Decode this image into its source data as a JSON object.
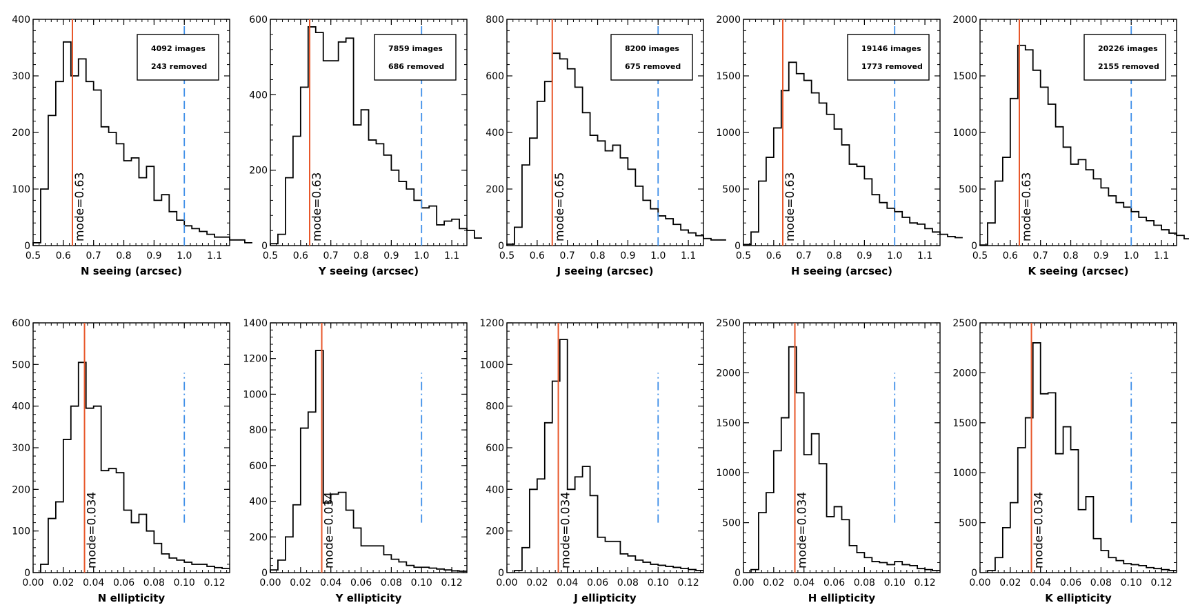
{
  "colors": {
    "axis": "#000000",
    "histogram": "#000000",
    "mode_line": "#e8572a",
    "threshold_line": "#3f8fe8"
  },
  "chart_data": [
    {
      "type": "step-histogram",
      "xlabel": "N seeing (arcsec)",
      "xlim": [
        0.5,
        1.15
      ],
      "xticks": [
        "0.5",
        "0.6",
        "0.7",
        "0.8",
        "0.9",
        "1.0",
        "1.1"
      ],
      "ylim": [
        0,
        400
      ],
      "yticks": [
        "0",
        "100",
        "200",
        "300",
        "400"
      ],
      "bin_width": 0.025,
      "bin_start": 0.5,
      "counts": [
        5,
        100,
        230,
        290,
        360,
        300,
        330,
        290,
        275,
        210,
        200,
        180,
        150,
        155,
        120,
        140,
        80,
        90,
        60,
        45,
        35,
        30,
        25,
        20,
        15,
        15,
        10,
        10,
        5
      ],
      "images_label": "4092 images",
      "removed_label": "243 removed",
      "mode_value": 0.63,
      "mode_label": "mode=0.63",
      "threshold": 1.0,
      "threshold_range": [
        0,
        390
      ],
      "threshold_style": "dashed"
    },
    {
      "type": "step-histogram",
      "xlabel": "Y seeing (arcsec)",
      "xlim": [
        0.5,
        1.15
      ],
      "xticks": [
        "0.5",
        "0.6",
        "0.7",
        "0.8",
        "0.9",
        "1.0",
        "1.1"
      ],
      "ylim": [
        0,
        600
      ],
      "yticks": [
        "0",
        "200",
        "400",
        "600"
      ],
      "bin_width": 0.025,
      "bin_start": 0.5,
      "counts": [
        5,
        30,
        180,
        290,
        420,
        580,
        565,
        490,
        490,
        540,
        550,
        320,
        360,
        280,
        270,
        240,
        200,
        170,
        150,
        120,
        100,
        105,
        55,
        65,
        70,
        45,
        40,
        20
      ],
      "images_label": "7859 images",
      "removed_label": "686 removed",
      "mode_value": 0.63,
      "mode_label": "mode=0.63",
      "threshold": 1.0,
      "threshold_range": [
        0,
        590
      ],
      "threshold_style": "dashed"
    },
    {
      "type": "step-histogram",
      "xlabel": "J seeing (arcsec)",
      "xlim": [
        0.5,
        1.15
      ],
      "xticks": [
        "0.5",
        "0.6",
        "0.7",
        "0.8",
        "0.9",
        "1.0",
        "1.1"
      ],
      "ylim": [
        0,
        800
      ],
      "yticks": [
        "0",
        "200",
        "400",
        "600",
        "800"
      ],
      "bin_width": 0.025,
      "bin_start": 0.5,
      "counts": [
        5,
        65,
        285,
        380,
        510,
        580,
        680,
        660,
        625,
        560,
        470,
        390,
        370,
        335,
        355,
        310,
        270,
        210,
        160,
        130,
        105,
        95,
        75,
        55,
        45,
        35,
        25,
        20,
        20
      ],
      "images_label": "8200 images",
      "removed_label": "675 removed",
      "mode_value": 0.65,
      "mode_label": "mode=0.65",
      "threshold": 1.0,
      "threshold_range": [
        0,
        790
      ],
      "threshold_style": "dashed"
    },
    {
      "type": "step-histogram",
      "xlabel": "H seeing (arcsec)",
      "xlim": [
        0.5,
        1.15
      ],
      "xticks": [
        "0.5",
        "0.6",
        "0.7",
        "0.8",
        "0.9",
        "1.0",
        "1.1"
      ],
      "ylim": [
        0,
        2000
      ],
      "yticks": [
        "0",
        "500",
        "1000",
        "1500",
        "2000"
      ],
      "bin_width": 0.025,
      "bin_start": 0.5,
      "counts": [
        10,
        120,
        570,
        780,
        1040,
        1370,
        1620,
        1520,
        1460,
        1350,
        1260,
        1160,
        1030,
        890,
        720,
        700,
        590,
        450,
        380,
        330,
        300,
        250,
        200,
        190,
        150,
        120,
        100,
        80,
        70
      ],
      "images_label": "19146 images",
      "removed_label": "1773 removed",
      "mode_value": 0.63,
      "mode_label": "mode=0.63",
      "threshold": 1.0,
      "threshold_range": [
        0,
        1980
      ],
      "threshold_style": "dashed"
    },
    {
      "type": "step-histogram",
      "xlabel": "K seeing (arcsec)",
      "xlim": [
        0.5,
        1.15
      ],
      "xticks": [
        "0.5",
        "0.6",
        "0.7",
        "0.8",
        "0.9",
        "1.0",
        "1.1"
      ],
      "ylim": [
        0,
        2000
      ],
      "yticks": [
        "0",
        "500",
        "1000",
        "1500",
        "2000"
      ],
      "bin_width": 0.025,
      "bin_start": 0.5,
      "counts": [
        5,
        200,
        570,
        780,
        1300,
        1770,
        1730,
        1550,
        1400,
        1250,
        1050,
        870,
        720,
        760,
        670,
        590,
        510,
        440,
        380,
        340,
        300,
        250,
        220,
        180,
        140,
        110,
        90,
        60
      ],
      "images_label": "20226 images",
      "removed_label": "2155 removed",
      "mode_value": 0.63,
      "mode_label": "mode=0.63",
      "threshold": 1.0,
      "threshold_range": [
        0,
        1980
      ],
      "threshold_style": "dashed"
    },
    {
      "type": "step-histogram",
      "xlabel": "N ellipticity",
      "xlim": [
        0.0,
        0.13
      ],
      "xticks": [
        "0.00",
        "0.02",
        "0.04",
        "0.06",
        "0.08",
        "0.10",
        "0.12"
      ],
      "ylim": [
        0,
        600
      ],
      "yticks": [
        "0",
        "100",
        "200",
        "300",
        "400",
        "500",
        "600"
      ],
      "bin_width": 0.005,
      "bin_start": 0.005,
      "counts": [
        20,
        130,
        170,
        320,
        400,
        505,
        395,
        400,
        245,
        250,
        240,
        150,
        120,
        140,
        100,
        70,
        45,
        35,
        30,
        25,
        20,
        20,
        15,
        12,
        10
      ],
      "images_label": "",
      "removed_label": "",
      "mode_value": 0.034,
      "mode_label": "mode=0.034",
      "threshold": 0.1,
      "threshold_range": [
        120,
        480
      ],
      "threshold_style": "dashdot"
    },
    {
      "type": "step-histogram",
      "xlabel": "Y ellipticity",
      "xlim": [
        0.0,
        0.13
      ],
      "xticks": [
        "0.00",
        "0.02",
        "0.04",
        "0.06",
        "0.08",
        "0.10",
        "0.12"
      ],
      "ylim": [
        0,
        1400
      ],
      "yticks": [
        "0",
        "200",
        "400",
        "600",
        "800",
        "1000",
        "1200",
        "1400"
      ],
      "bin_width": 0.005,
      "bin_start": 0.0,
      "counts": [
        15,
        70,
        200,
        380,
        810,
        900,
        1245,
        390,
        440,
        450,
        350,
        250,
        150,
        150,
        150,
        100,
        75,
        60,
        40,
        30,
        30,
        25,
        20,
        15,
        10,
        8
      ],
      "images_label": "",
      "removed_label": "",
      "mode_value": 0.034,
      "mode_label": "mode=0.034",
      "threshold": 0.1,
      "threshold_range": [
        280,
        1120
      ],
      "threshold_style": "dashdot"
    },
    {
      "type": "step-histogram",
      "xlabel": "J ellipticity",
      "xlim": [
        0.0,
        0.13
      ],
      "xticks": [
        "0.00",
        "0.02",
        "0.04",
        "0.06",
        "0.08",
        "0.10",
        "0.12"
      ],
      "ylim": [
        0,
        1200
      ],
      "yticks": [
        "0",
        "200",
        "400",
        "600",
        "800",
        "1000",
        "1200"
      ],
      "bin_width": 0.005,
      "bin_start": 0.005,
      "counts": [
        10,
        120,
        400,
        450,
        720,
        920,
        1120,
        400,
        460,
        510,
        370,
        170,
        150,
        150,
        90,
        80,
        60,
        50,
        40,
        35,
        30,
        25,
        20,
        15,
        10
      ],
      "images_label": "",
      "removed_label": "",
      "mode_value": 0.034,
      "mode_label": "mode=0.034",
      "threshold": 0.1,
      "threshold_range": [
        240,
        960
      ],
      "threshold_style": "dashdot"
    },
    {
      "type": "step-histogram",
      "xlabel": "H ellipticity",
      "xlim": [
        0.0,
        0.13
      ],
      "xticks": [
        "0.00",
        "0.02",
        "0.04",
        "0.06",
        "0.08",
        "0.10",
        "0.12"
      ],
      "ylim": [
        0,
        2500
      ],
      "yticks": [
        "0",
        "500",
        "1000",
        "1500",
        "2000",
        "2500"
      ],
      "bin_width": 0.005,
      "bin_start": 0.005,
      "counts": [
        30,
        600,
        800,
        1220,
        1550,
        2260,
        1800,
        1180,
        1390,
        1090,
        560,
        660,
        530,
        270,
        200,
        150,
        110,
        100,
        80,
        110,
        80,
        70,
        40,
        30,
        20
      ],
      "images_label": "",
      "removed_label": "",
      "mode_value": 0.034,
      "mode_label": "mode=0.034",
      "threshold": 0.1,
      "threshold_range": [
        500,
        2000
      ],
      "threshold_style": "dashdot"
    },
    {
      "type": "step-histogram",
      "xlabel": "K ellipticity",
      "xlim": [
        0.0,
        0.13
      ],
      "xticks": [
        "0.00",
        "0.02",
        "0.04",
        "0.06",
        "0.08",
        "0.10",
        "0.12"
      ],
      "ylim": [
        0,
        2500
      ],
      "yticks": [
        "0",
        "500",
        "1000",
        "1500",
        "2000",
        "2500"
      ],
      "bin_width": 0.005,
      "bin_start": 0.005,
      "counts": [
        20,
        150,
        450,
        700,
        1250,
        1550,
        2300,
        1790,
        1800,
        1190,
        1460,
        1230,
        630,
        760,
        340,
        220,
        150,
        120,
        90,
        80,
        70,
        50,
        40,
        30,
        20
      ],
      "images_label": "",
      "removed_label": "",
      "mode_value": 0.034,
      "mode_label": "mode=0.034",
      "threshold": 0.1,
      "threshold_range": [
        500,
        2000
      ],
      "threshold_style": "dashdot"
    }
  ]
}
